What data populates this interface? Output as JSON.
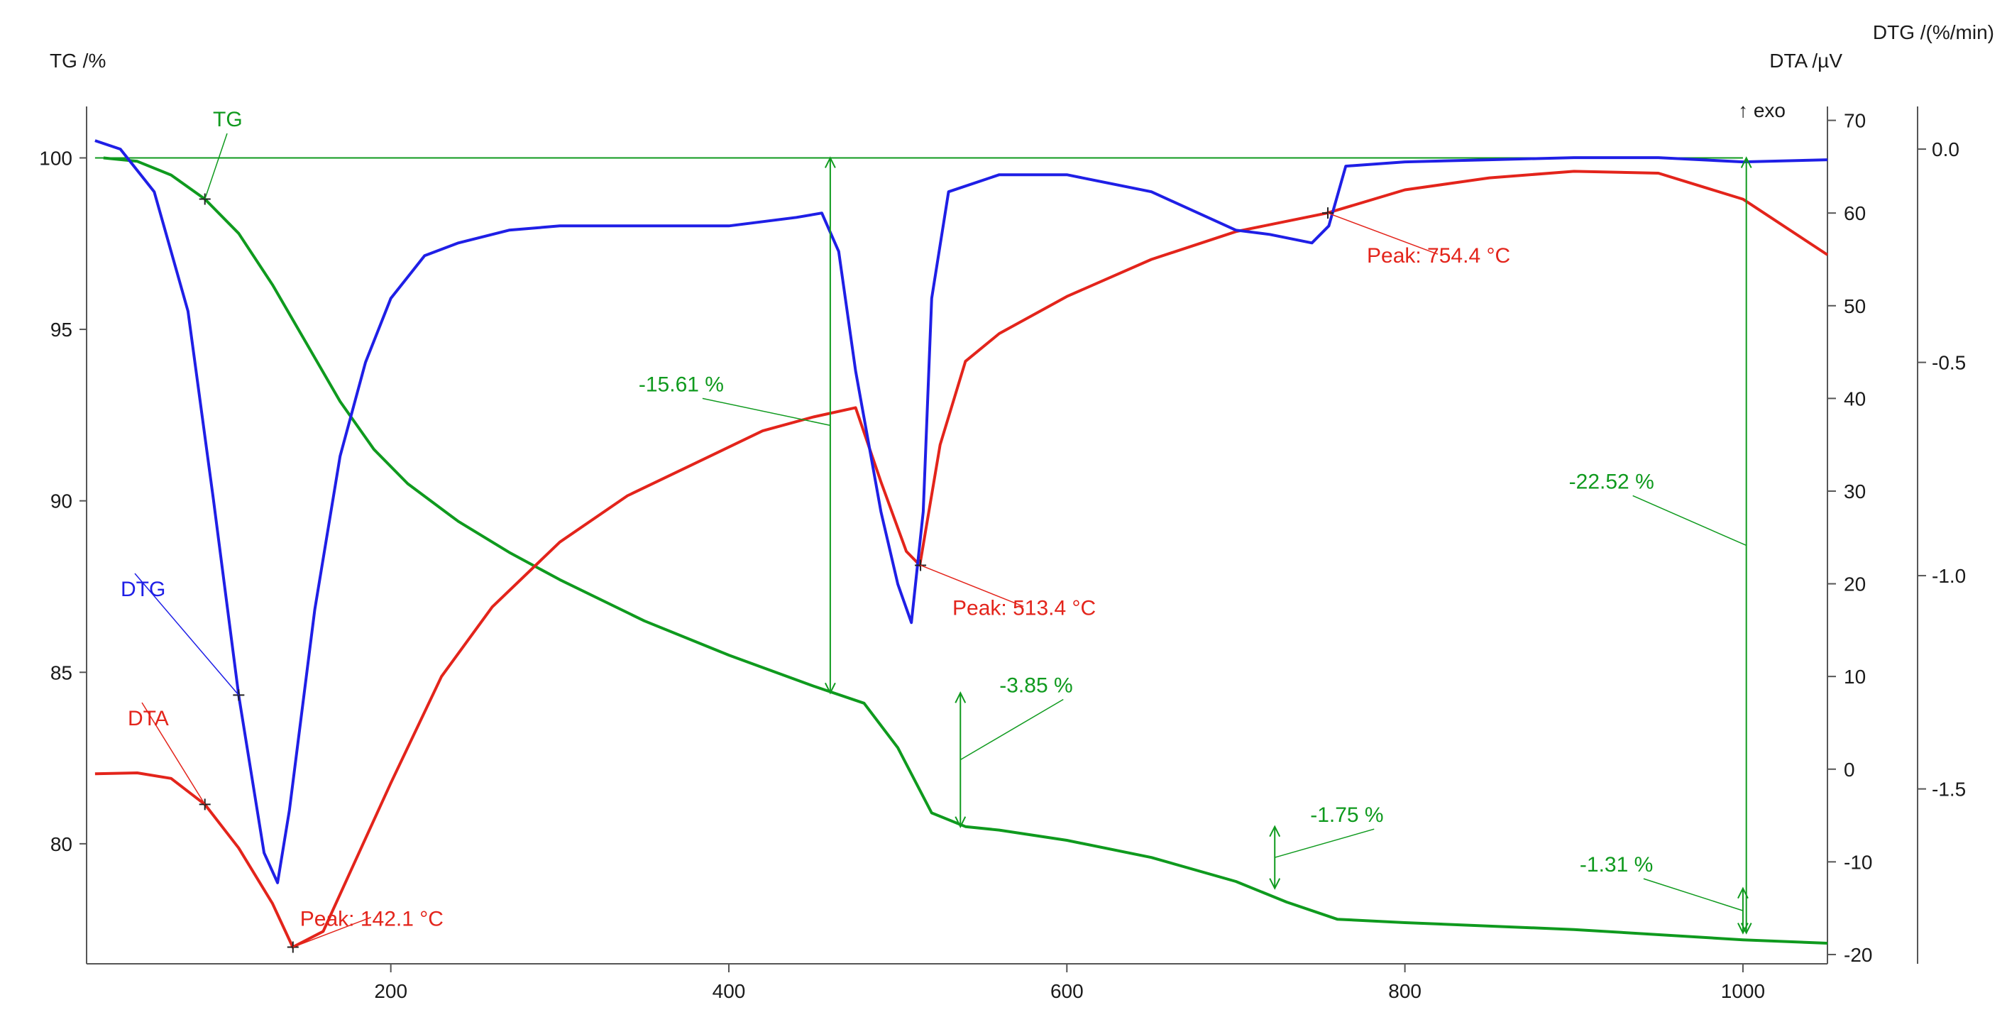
{
  "chart_data": {
    "type": "line",
    "title": "",
    "x_axis": {
      "min": 20,
      "max": 1050,
      "ticks": [
        200,
        400,
        600,
        800,
        1000
      ]
    },
    "axes": {
      "tg": {
        "title": "TG /%",
        "min": 76.5,
        "max": 101.5,
        "ticks": [
          80,
          85,
          90,
          95,
          100
        ]
      },
      "dta": {
        "title": "DTA /µV",
        "min": -21,
        "max": 71.5,
        "ticks": [
          -20,
          -10,
          0,
          10,
          20,
          30,
          40,
          50,
          60,
          70
        ],
        "note": "↑ exo"
      },
      "dtg": {
        "title": "DTG /(%/min)",
        "min": -1.91,
        "max": 0.1,
        "ticks": [
          0.0,
          -0.5,
          -1.0,
          -1.5
        ],
        "tick_labels": [
          "0.0",
          "-0.5",
          "-1.0",
          "-1.5"
        ]
      }
    },
    "colors": {
      "tg": "#0f9a1e",
      "dta": "#e3241b",
      "dtg": "#1f1fe6",
      "axis": "#555555"
    },
    "series": [
      {
        "name": "TG",
        "axis": "tg",
        "color": "#0f9a1e",
        "x": [
          30,
          50,
          70,
          90,
          110,
          130,
          150,
          170,
          190,
          210,
          240,
          270,
          300,
          350,
          400,
          450,
          480,
          500,
          520,
          540,
          560,
          600,
          650,
          700,
          730,
          760,
          800,
          900,
          1000,
          1050
        ],
        "y": [
          100.0,
          99.9,
          99.5,
          98.8,
          97.8,
          96.3,
          94.6,
          92.9,
          91.5,
          90.5,
          89.4,
          88.5,
          87.7,
          86.5,
          85.5,
          84.6,
          84.1,
          82.8,
          80.9,
          80.5,
          80.4,
          80.1,
          79.6,
          78.9,
          78.3,
          77.8,
          77.7,
          77.5,
          77.2,
          77.1
        ]
      },
      {
        "name": "DTA",
        "axis": "dta",
        "color": "#e3241b",
        "x": [
          25,
          50,
          70,
          90,
          110,
          130,
          142,
          160,
          180,
          200,
          230,
          260,
          300,
          340,
          380,
          420,
          450,
          475,
          490,
          505,
          513,
          525,
          540,
          560,
          600,
          650,
          700,
          754,
          800,
          850,
          900,
          950,
          1000,
          1050
        ],
        "y": [
          -0.5,
          -0.4,
          -1.0,
          -3.8,
          -8.5,
          -14.5,
          -19.2,
          -17.5,
          -9.5,
          -1.5,
          10.0,
          17.5,
          24.5,
          29.5,
          33.0,
          36.5,
          38.0,
          39.0,
          31.0,
          23.5,
          22.0,
          35.0,
          44.0,
          47.0,
          51.0,
          55.0,
          58.0,
          60.0,
          62.5,
          63.8,
          64.5,
          64.3,
          61.5,
          55.5
        ]
      },
      {
        "name": "DTG",
        "axis": "dtg",
        "color": "#1f1fe6",
        "x": [
          25,
          40,
          60,
          80,
          95,
          110,
          125,
          133,
          140,
          155,
          170,
          185,
          200,
          220,
          240,
          270,
          300,
          350,
          400,
          440,
          455,
          465,
          475,
          490,
          500,
          508,
          515,
          520,
          530,
          560,
          600,
          650,
          700,
          720,
          745,
          755,
          765,
          800,
          850,
          900,
          950,
          1000,
          1050
        ],
        "y": [
          0.02,
          0.0,
          -0.1,
          -0.38,
          -0.82,
          -1.28,
          -1.65,
          -1.72,
          -1.55,
          -1.08,
          -0.72,
          -0.5,
          -0.35,
          -0.25,
          -0.22,
          -0.19,
          -0.18,
          -0.18,
          -0.18,
          -0.16,
          -0.15,
          -0.24,
          -0.52,
          -0.85,
          -1.02,
          -1.11,
          -0.85,
          -0.35,
          -0.1,
          -0.06,
          -0.06,
          -0.1,
          -0.19,
          -0.2,
          -0.22,
          -0.18,
          -0.04,
          -0.03,
          -0.025,
          -0.02,
          -0.02,
          -0.03,
          -0.025
        ]
      }
    ],
    "reference_line": {
      "axis": "tg",
      "y": 100,
      "from_x": 25,
      "to_x": 1000,
      "color": "#0f9a1e"
    },
    "mass_steps": [
      {
        "label": "-15.61 %",
        "x": 460,
        "from_y": 100.0,
        "to_y": 84.4
      },
      {
        "label": "-3.85 %",
        "x": 537,
        "from_y": 84.4,
        "to_y": 80.5
      },
      {
        "label": "-1.75 %",
        "x": 723,
        "from_y": 80.5,
        "to_y": 78.7
      },
      {
        "label": "-1.31 %",
        "x": 1000,
        "from_y": 78.7,
        "to_y": 77.4
      },
      {
        "label": "-22.52 %",
        "x": 1002,
        "from_y": 100.0,
        "to_y": 77.4
      }
    ],
    "peaks": [
      {
        "label": "Peak: 142.1 °C",
        "x": 142.1,
        "y_dta": -19.2
      },
      {
        "label": "Peak: 513.4 °C",
        "x": 513.4,
        "y_dta": 22.0
      },
      {
        "label": "Peak: 754.4 °C",
        "x": 754.4,
        "y_dta": 60.0
      }
    ],
    "curve_labels": [
      {
        "label": "TG",
        "series": "TG"
      },
      {
        "label": "DTG",
        "series": "DTG"
      },
      {
        "label": "DTA",
        "series": "DTA"
      }
    ]
  }
}
